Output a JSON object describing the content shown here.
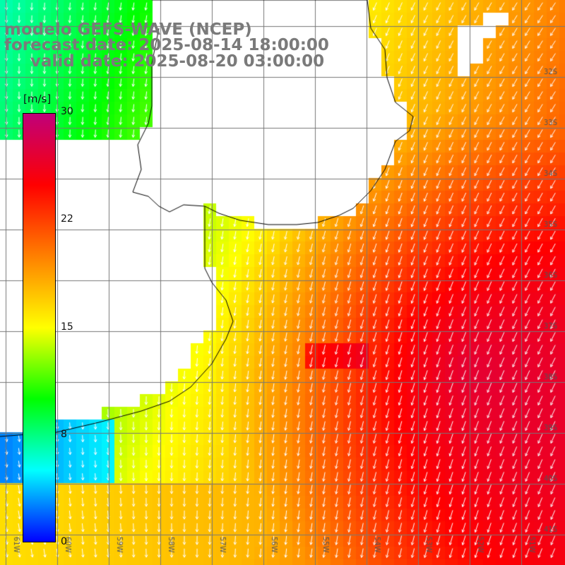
{
  "title": {
    "line1": "modelo GEFS-WAVE (NCEP)",
    "line2": "forecast date: 2025-08-14 18:00:00",
    "line3": "valid date: 2025-08-20 03:00:00"
  },
  "colorbar": {
    "unit": "[m/s]",
    "min": 0,
    "max": 30,
    "tick_labels": [
      "30",
      "22",
      "15",
      "8",
      "0"
    ],
    "tick_values": [
      30,
      22,
      15,
      8,
      0
    ],
    "colors": [
      "#0000ff",
      "#00ffff",
      "#00ff00",
      "#ffff00",
      "#ff8000",
      "#ff0000",
      "#c0007a"
    ]
  },
  "map": {
    "lon_labels": [
      "61W",
      "60W",
      "59W",
      "58W",
      "57W",
      "56W",
      "55W",
      "54W",
      "53W",
      "52W",
      "51W"
    ],
    "lat_labels": [
      "32S",
      "33S",
      "34S",
      "35S",
      "36S",
      "37S",
      "38S",
      "39S",
      "40S",
      "41S"
    ],
    "lon_range": [
      -61.5,
      -50.5
    ],
    "lat_range": [
      -41.5,
      -30.5
    ],
    "field_colors": {
      "land": "#ffffff",
      "grid": "#555555",
      "coast": "#000000",
      "arrow": "#ffffff"
    }
  }
}
